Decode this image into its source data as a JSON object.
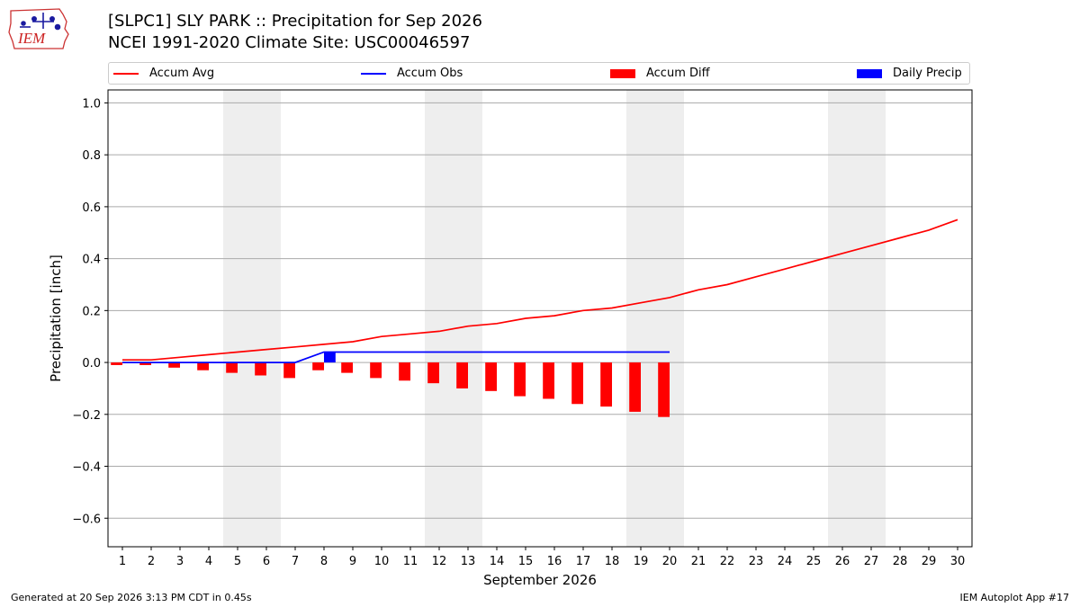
{
  "header": {
    "title_line1": "[SLPC1] SLY PARK :: Precipitation for Sep 2026",
    "title_line2": "NCEI 1991-2020 Climate Site: USC00046597",
    "logo_text": "IEM"
  },
  "legend": {
    "accum_avg": "Accum Avg",
    "accum_obs": "Accum Obs",
    "accum_diff": "Accum Diff",
    "daily_precip": "Daily Precip"
  },
  "footer": {
    "generated": "Generated at 20 Sep 2026 3:13 PM CDT in 0.45s",
    "app": "IEM Autoplot App #17"
  },
  "colors": {
    "accum_avg": "#ff0000",
    "accum_obs": "#0000ff",
    "accum_diff": "#ff0000",
    "daily_precip": "#0000ff",
    "weekend_shade": "#eeeeee",
    "grid": "#aaaaaa"
  },
  "chart_data": {
    "type": "bar",
    "xlabel": "September 2026",
    "ylabel": "Precipitation [inch]",
    "xlim": [
      0.5,
      30.5
    ],
    "ylim": [
      -0.71,
      1.05
    ],
    "x_ticks": [
      1,
      2,
      3,
      4,
      5,
      6,
      7,
      8,
      9,
      10,
      11,
      12,
      13,
      14,
      15,
      16,
      17,
      18,
      19,
      20,
      21,
      22,
      23,
      24,
      25,
      26,
      27,
      28,
      29,
      30
    ],
    "y_ticks": [
      -0.6,
      -0.4,
      -0.2,
      0.0,
      0.2,
      0.4,
      0.6,
      0.8,
      1.0
    ],
    "y_tick_labels": [
      "−0.6",
      "−0.4",
      "−0.2",
      "0.0",
      "0.2",
      "0.4",
      "0.6",
      "0.8",
      "1.0"
    ],
    "grid": "horizontal",
    "legend_placement": "top",
    "weekend_spans": [
      [
        5,
        6
      ],
      [
        12,
        13
      ],
      [
        19,
        20
      ],
      [
        26,
        27
      ]
    ],
    "series": [
      {
        "name": "Accum Avg",
        "type": "line",
        "x": [
          1,
          2,
          3,
          4,
          5,
          6,
          7,
          8,
          9,
          10,
          11,
          12,
          13,
          14,
          15,
          16,
          17,
          18,
          19,
          20,
          21,
          22,
          23,
          24,
          25,
          26,
          27,
          28,
          29,
          30
        ],
        "values": [
          0.01,
          0.01,
          0.02,
          0.03,
          0.04,
          0.05,
          0.06,
          0.07,
          0.08,
          0.1,
          0.11,
          0.12,
          0.14,
          0.15,
          0.17,
          0.18,
          0.2,
          0.21,
          0.23,
          0.25,
          0.28,
          0.3,
          0.33,
          0.36,
          0.39,
          0.42,
          0.45,
          0.48,
          0.51,
          0.55
        ]
      },
      {
        "name": "Accum Obs",
        "type": "line",
        "x": [
          1,
          2,
          3,
          4,
          5,
          6,
          7,
          8,
          9,
          10,
          11,
          12,
          13,
          14,
          15,
          16,
          17,
          18,
          19,
          20
        ],
        "values": [
          0.0,
          0.0,
          0.0,
          0.0,
          0.0,
          0.0,
          0.0,
          0.04,
          0.04,
          0.04,
          0.04,
          0.04,
          0.04,
          0.04,
          0.04,
          0.04,
          0.04,
          0.04,
          0.04,
          0.04
        ]
      },
      {
        "name": "Accum Diff",
        "type": "bar",
        "x": [
          1,
          2,
          3,
          4,
          5,
          6,
          7,
          8,
          9,
          10,
          11,
          12,
          13,
          14,
          15,
          16,
          17,
          18,
          19,
          20
        ],
        "values": [
          -0.01,
          -0.01,
          -0.02,
          -0.03,
          -0.04,
          -0.05,
          -0.06,
          -0.03,
          -0.04,
          -0.06,
          -0.07,
          -0.08,
          -0.1,
          -0.11,
          -0.13,
          -0.14,
          -0.16,
          -0.17,
          -0.19,
          -0.21
        ]
      },
      {
        "name": "Daily Precip",
        "type": "bar",
        "x": [
          8
        ],
        "values": [
          0.04
        ]
      }
    ]
  }
}
